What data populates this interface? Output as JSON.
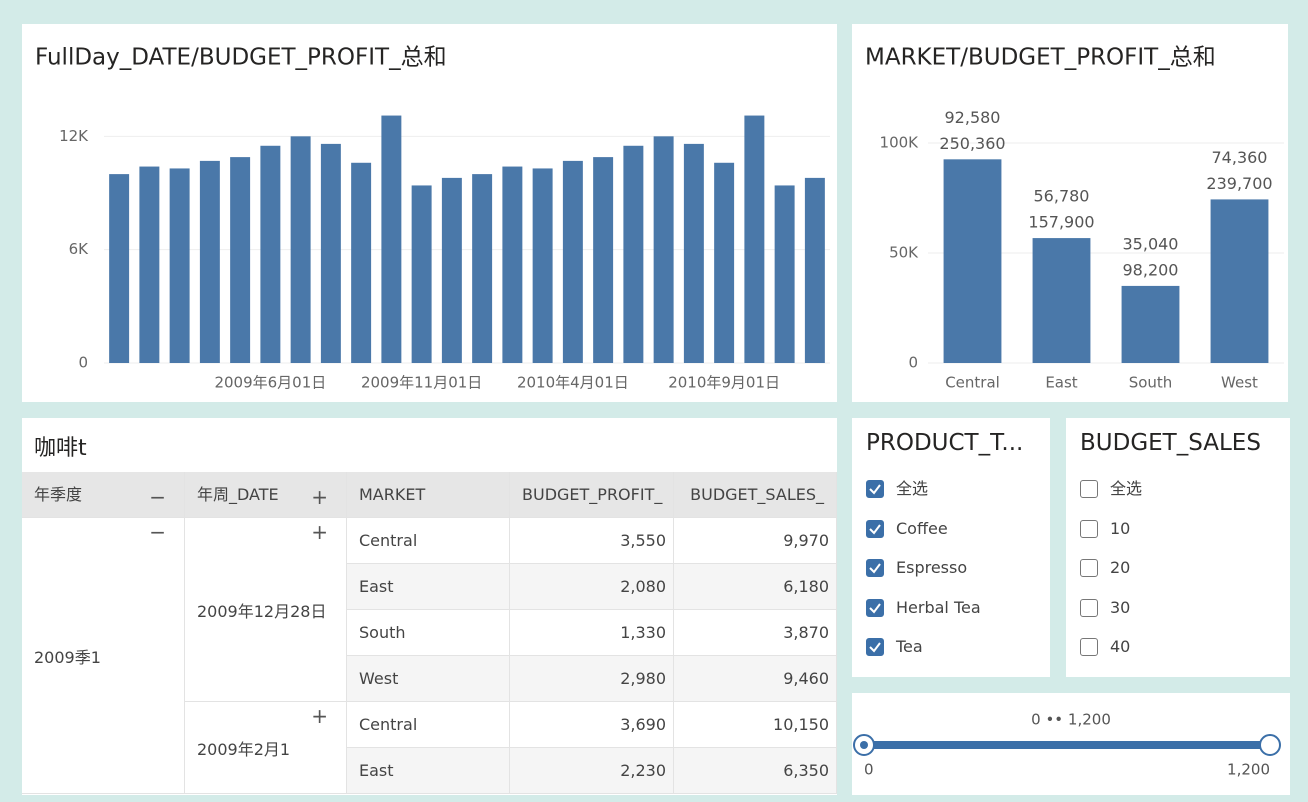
{
  "chart_data": [
    {
      "type": "bar",
      "title": "FullDay_DATE/BUDGET_PROFIT_总和",
      "categories": [
        null,
        null,
        null,
        null,
        null,
        "2009年6月01日",
        null,
        null,
        null,
        null,
        "2009年11月01日",
        null,
        null,
        null,
        null,
        "2010年4月01日",
        null,
        null,
        null,
        null,
        "2010年9月01日",
        null,
        null,
        null
      ],
      "values": [
        10000,
        10400,
        10300,
        10700,
        10900,
        11500,
        12000,
        11600,
        10600,
        13100,
        9400,
        9800,
        10000,
        10400,
        10300,
        10700,
        10900,
        11500,
        12000,
        11600,
        10600,
        13100,
        9400,
        9800
      ],
      "color": "#4a78a9",
      "ylim": [
        0,
        13500
      ],
      "yticks": [
        0,
        {
          "value": 6000,
          "label": "6K"
        },
        {
          "value": 12000,
          "label": "12K"
        }
      ],
      "grid": true
    },
    {
      "type": "bar",
      "title": "MARKET/BUDGET_PROFIT_总和",
      "categories": [
        "Central",
        "East",
        "South",
        "West"
      ],
      "values": [
        92580,
        56780,
        35040,
        74360
      ],
      "value_labels": [
        "92,580",
        "56,780",
        "35,040",
        "74,360"
      ],
      "secondary_values": [
        250360,
        157900,
        98200,
        239700
      ],
      "secondary_value_labels": [
        "250,360",
        "157,900",
        "98,200",
        "239,700"
      ],
      "color": "#4a78a9",
      "ylim": [
        0,
        115000
      ],
      "yticks": [
        0,
        {
          "value": 50000,
          "label": "50K"
        },
        {
          "value": 100000,
          "label": "100K"
        }
      ],
      "grid": true
    }
  ],
  "table": {
    "title": "咖啡t",
    "columns": [
      "年季度",
      "年周_DATE",
      "MARKET",
      "BUDGET_PROFIT_",
      "BUDGET_SALES_"
    ],
    "groups": [
      {
        "quarter": "2009季1",
        "weeks": [
          {
            "week": "2009年12月28日",
            "rows": [
              [
                "Central",
                "3,550",
                "9,970"
              ],
              [
                "East",
                "2,080",
                "6,180"
              ],
              [
                "South",
                "1,330",
                "3,870"
              ],
              [
                "West",
                "2,980",
                "9,460"
              ]
            ]
          },
          {
            "week": "2009年2月1",
            "rows": [
              [
                "Central",
                "3,690",
                "10,150"
              ],
              [
                "East",
                "2,230",
                "6,350"
              ]
            ]
          }
        ]
      }
    ]
  },
  "filters": [
    {
      "title": "PRODUCT_T...",
      "items": [
        {
          "label": "全选",
          "checked": true
        },
        {
          "label": "Coffee",
          "checked": true
        },
        {
          "label": "Espresso",
          "checked": true
        },
        {
          "label": "Herbal Tea",
          "checked": true
        },
        {
          "label": "Tea",
          "checked": true
        }
      ]
    },
    {
      "title": "BUDGET_SALES",
      "items": [
        {
          "label": "全选",
          "checked": false
        },
        {
          "label": "10",
          "checked": false
        },
        {
          "label": "20",
          "checked": false
        },
        {
          "label": "30",
          "checked": false
        },
        {
          "label": "40",
          "checked": false
        }
      ]
    }
  ],
  "slider": {
    "range_label": "0 •• 1,200",
    "min": 0,
    "max": {
      "value": 1200,
      "label": "1,200"
    }
  }
}
